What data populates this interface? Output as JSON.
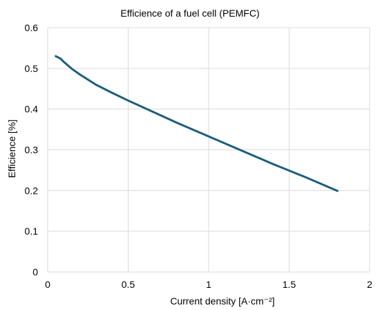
{
  "chart_data": {
    "type": "line",
    "title": "Efficience of a fuel cell (PEMFC)",
    "xlabel": "Current density [A·cm⁻²]",
    "ylabel": "Efficience [%]",
    "xlim": [
      0,
      2
    ],
    "ylim": [
      0,
      0.6
    ],
    "xticks": [
      0,
      0.5,
      1,
      1.5,
      2
    ],
    "xtick_labels": [
      "0",
      "0.5",
      "1",
      "1.5",
      "2"
    ],
    "yticks": [
      0,
      0.1,
      0.2,
      0.3,
      0.4,
      0.5,
      0.6
    ],
    "ytick_labels": [
      "0",
      "0.1",
      "0.2",
      "0.3",
      "0.4",
      "0.5",
      "0.6"
    ],
    "grid": true,
    "legend": "none",
    "series": [
      {
        "color": "#1b5e7a",
        "x": [
          0.05,
          0.08,
          0.1,
          0.15,
          0.2,
          0.3,
          0.4,
          0.5,
          0.6,
          0.7,
          0.8,
          0.9,
          1.0,
          1.1,
          1.2,
          1.3,
          1.4,
          1.5,
          1.6,
          1.7,
          1.8
        ],
        "y": [
          0.53,
          0.524,
          0.516,
          0.499,
          0.485,
          0.46,
          0.44,
          0.421,
          0.403,
          0.385,
          0.367,
          0.35,
          0.333,
          0.316,
          0.299,
          0.282,
          0.265,
          0.249,
          0.233,
          0.216,
          0.199
        ]
      }
    ]
  }
}
